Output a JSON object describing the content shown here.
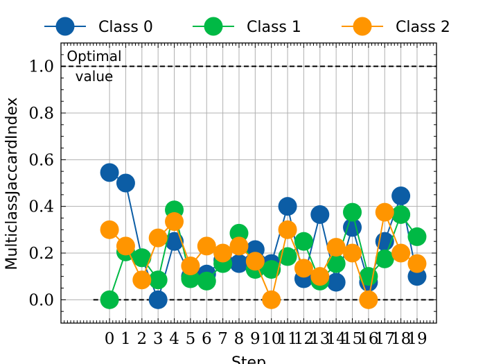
{
  "chart_data": {
    "type": "line",
    "xlabel": "Step",
    "ylabel": "MulticlassJaccardIndex",
    "x": [
      0,
      1,
      2,
      3,
      4,
      5,
      6,
      7,
      8,
      9,
      10,
      11,
      12,
      13,
      14,
      15,
      16,
      17,
      18,
      19
    ],
    "xticklabels": [
      "0",
      "1",
      "2",
      "3",
      "4",
      "5",
      "6",
      "7",
      "8",
      "9",
      "10",
      "11",
      "12",
      "13",
      "14",
      "15",
      "16",
      "17",
      "18",
      "19"
    ],
    "xlim": [
      -3,
      20.2
    ],
    "ylim": [
      -0.1,
      1.1
    ],
    "yticks": [
      0.0,
      0.2,
      0.4,
      0.6,
      0.8,
      1.0
    ],
    "yticklabels": [
      "0.0",
      "0.2",
      "0.4",
      "0.6",
      "0.8",
      "1.0"
    ],
    "grid": true,
    "legend_position": "top, outside plot",
    "series": [
      {
        "name": "Class 0",
        "color": "#0C5DA5",
        "values": [
          0.545,
          0.5,
          0.18,
          0.0,
          0.25,
          0.1,
          0.11,
          0.17,
          0.155,
          0.215,
          0.155,
          0.4,
          0.09,
          0.365,
          0.075,
          0.31,
          0.075,
          0.25,
          0.445,
          0.1
        ]
      },
      {
        "name": "Class 1",
        "color": "#00B945",
        "values": [
          0.0,
          0.205,
          0.18,
          0.085,
          0.385,
          0.09,
          0.08,
          0.155,
          0.285,
          0.13,
          0.13,
          0.185,
          0.25,
          0.08,
          0.155,
          0.375,
          0.1,
          0.175,
          0.365,
          0.27
        ]
      },
      {
        "name": "Class 2",
        "color": "#FF9500",
        "values": [
          0.3,
          0.23,
          0.085,
          0.265,
          0.335,
          0.145,
          0.23,
          0.2,
          0.23,
          0.165,
          0.0,
          0.3,
          0.135,
          0.1,
          0.225,
          0.2,
          0.0,
          0.375,
          0.2,
          0.155
        ]
      }
    ],
    "reference_lines": [
      {
        "y": 1.0,
        "label": "Optimal value",
        "style": "dashed",
        "color": "#000000"
      },
      {
        "y": 0.0,
        "style": "dashed",
        "color": "#000000"
      }
    ]
  }
}
